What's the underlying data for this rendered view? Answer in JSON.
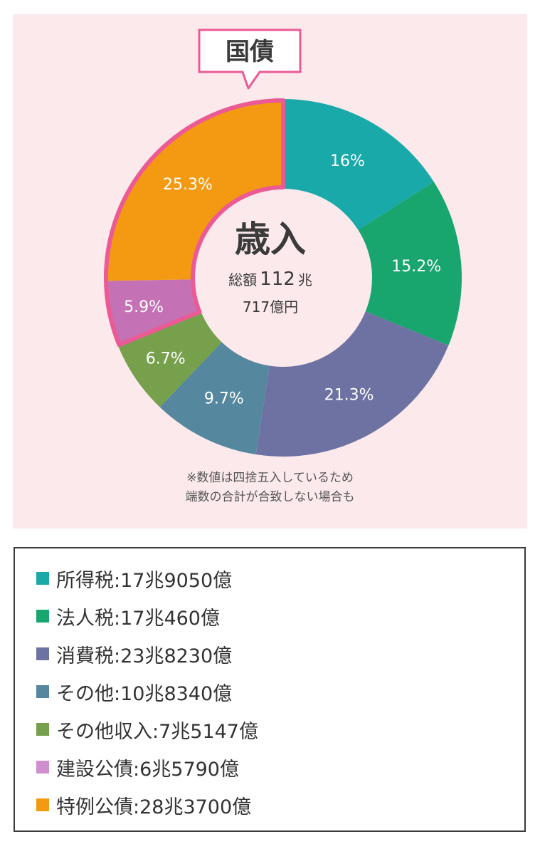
{
  "callout": {
    "label": "国債",
    "border_color": "#ec5a96"
  },
  "center": {
    "title": "歳入",
    "total_prefix": "総額",
    "total_number": "112",
    "total_unit": "兆",
    "total_line2": "717億円"
  },
  "footnote": {
    "line1": "※数値は四捨五入しているため",
    "line2": "端数の合計が合致しない場合も"
  },
  "chart_data": {
    "type": "pie",
    "variant": "donut",
    "categories": [
      "所得税",
      "法人税",
      "消費税",
      "その他",
      "その他収入",
      "建設公債",
      "特例公債"
    ],
    "values": [
      16,
      15.2,
      21.3,
      9.7,
      6.7,
      5.9,
      25.3
    ],
    "labels": [
      "16%",
      "15.2%",
      "21.3%",
      "9.7%",
      "6.7%",
      "5.9%",
      "25.3%"
    ],
    "colors": [
      "#1aa9a9",
      "#18a56e",
      "#6e72a3",
      "#55879e",
      "#76a04c",
      "#c472b5",
      "#f39a12"
    ],
    "highlighted": [
      "建設公債",
      "特例公債"
    ],
    "highlight_color": "#ec5a96"
  },
  "legend": {
    "items": [
      {
        "label": "所得税:17兆9050億",
        "color": "#1aa9a9"
      },
      {
        "label": "法人税:17兆460億",
        "color": "#18a56e"
      },
      {
        "label": "消費税:23兆8230億",
        "color": "#6e72a3"
      },
      {
        "label": "その他:10兆8340億",
        "color": "#55879e"
      },
      {
        "label": "その他収入:7兆5147億",
        "color": "#76a04c"
      },
      {
        "label": "建設公債:6兆5790億",
        "color": "#cf8fce"
      },
      {
        "label": "特例公債:28兆3700億",
        "color": "#f39a12"
      }
    ]
  }
}
